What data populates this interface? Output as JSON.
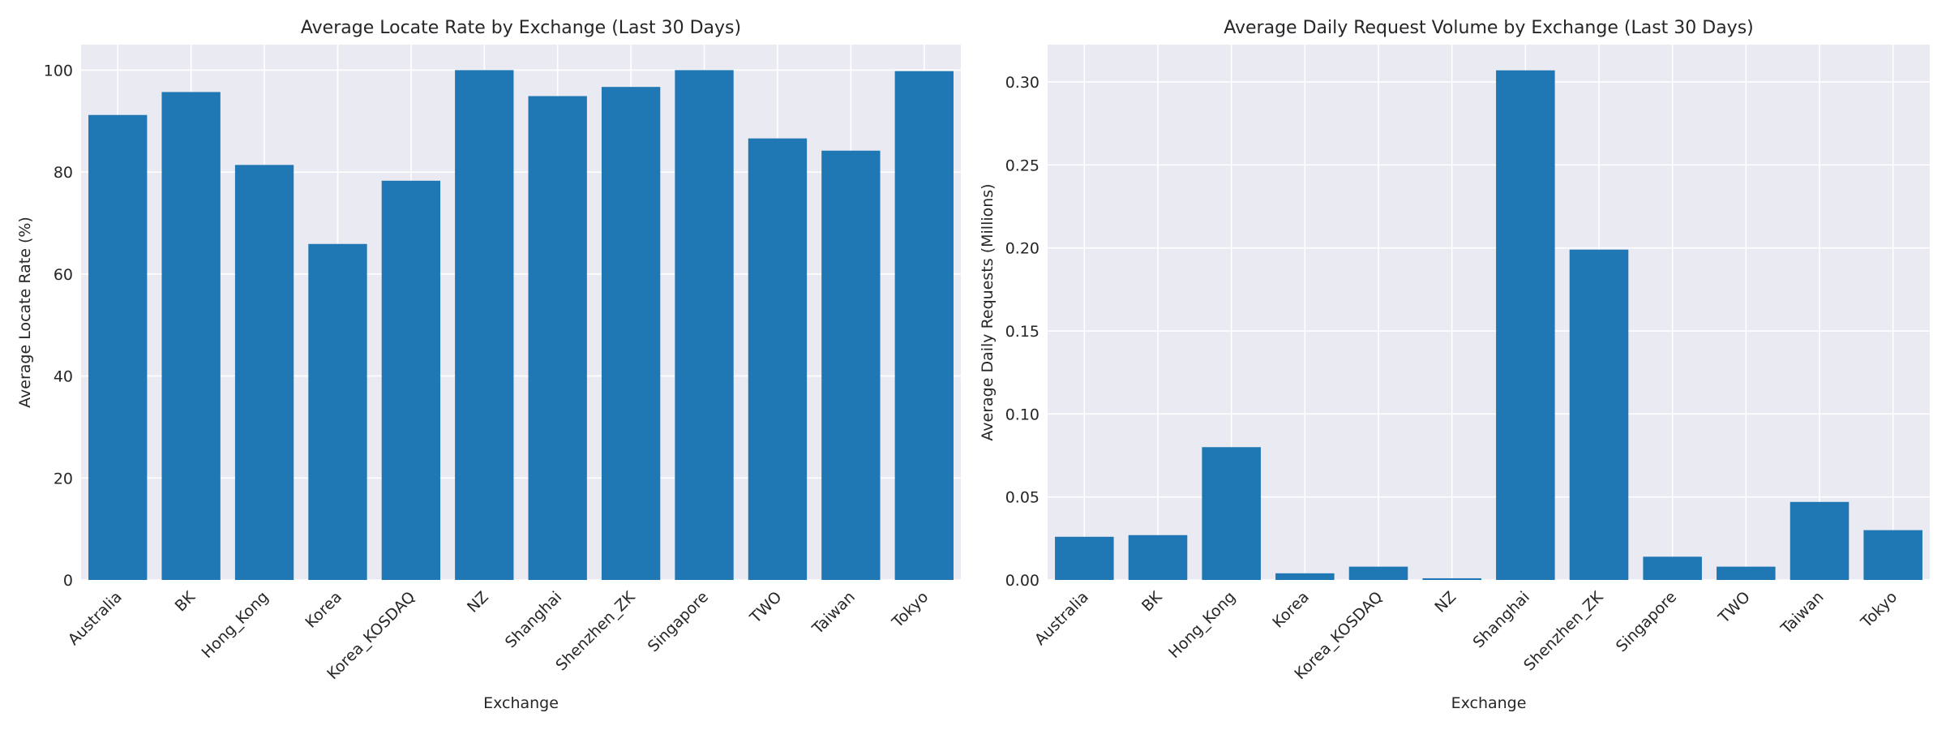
{
  "colors": {
    "plot_background": "#eaeaf2",
    "grid": "#ffffff",
    "bar": "#1f77b4",
    "text": "#262626"
  },
  "chart_data": [
    {
      "type": "bar",
      "title": "Average Locate Rate by Exchange (Last 30 Days)",
      "xlabel": "Exchange",
      "ylabel": "Average Locate Rate (%)",
      "categories": [
        "Australia",
        "BK",
        "Hong_Kong",
        "Korea",
        "Korea_KOSDAQ",
        "NZ",
        "Shanghai",
        "Shenzhen_ZK",
        "Singapore",
        "TWO",
        "Taiwan",
        "Tokyo"
      ],
      "values": [
        91.2,
        95.7,
        81.4,
        65.9,
        78.3,
        100.0,
        94.9,
        96.7,
        100.0,
        86.6,
        84.2,
        99.8
      ],
      "ylim": [
        0,
        105
      ],
      "yticks": [
        "0",
        "20",
        "40",
        "60",
        "80",
        "100"
      ],
      "grid": true,
      "legend": "none"
    },
    {
      "type": "bar",
      "title": "Average Daily Request Volume by Exchange (Last 30 Days)",
      "xlabel": "Exchange",
      "ylabel": "Average Daily Requests (Millions)",
      "categories": [
        "Australia",
        "BK",
        "Hong_Kong",
        "Korea",
        "Korea_KOSDAQ",
        "NZ",
        "Shanghai",
        "Shenzhen_ZK",
        "Singapore",
        "TWO",
        "Taiwan",
        "Tokyo"
      ],
      "values": [
        0.026,
        0.027,
        0.08,
        0.004,
        0.008,
        0.001,
        0.307,
        0.199,
        0.014,
        0.008,
        0.047,
        0.03
      ],
      "ylim": [
        0,
        0.3225
      ],
      "yticks": [
        "0.00",
        "0.05",
        "0.10",
        "0.15",
        "0.20",
        "0.25",
        "0.30"
      ],
      "grid": true,
      "legend": "none"
    }
  ]
}
